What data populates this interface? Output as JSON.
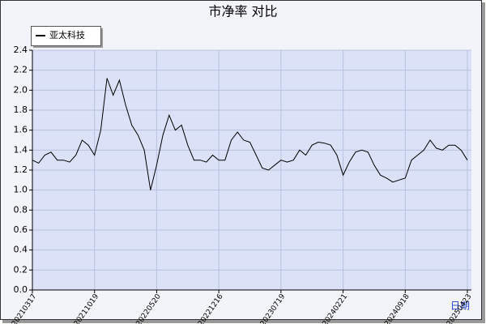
{
  "chart_data": {
    "type": "line",
    "title": "市净率 对比",
    "x_label": "日期",
    "categories": [
      "20210317",
      null,
      null,
      null,
      null,
      null,
      null,
      null,
      null,
      null,
      "20211019",
      null,
      null,
      null,
      null,
      null,
      null,
      null,
      null,
      null,
      "20220520",
      null,
      null,
      null,
      null,
      null,
      null,
      null,
      null,
      null,
      "20221216",
      null,
      null,
      null,
      null,
      null,
      null,
      null,
      null,
      null,
      "20230719",
      null,
      null,
      null,
      null,
      null,
      null,
      null,
      null,
      null,
      "20240221",
      null,
      null,
      null,
      null,
      null,
      null,
      null,
      null,
      null,
      "20240918",
      null,
      null,
      null,
      null,
      null,
      null,
      null,
      null,
      null,
      "20250423"
    ],
    "series": [
      {
        "name": "亚太科技",
        "color": "#000000",
        "values": [
          1.3,
          1.27,
          1.35,
          1.38,
          1.3,
          1.3,
          1.28,
          1.35,
          1.5,
          1.45,
          1.35,
          1.6,
          2.12,
          1.95,
          2.1,
          1.85,
          1.65,
          1.55,
          1.4,
          1.0,
          1.25,
          1.55,
          1.75,
          1.6,
          1.65,
          1.45,
          1.3,
          1.3,
          1.28,
          1.35,
          1.3,
          1.3,
          1.5,
          1.58,
          1.5,
          1.48,
          1.35,
          1.22,
          1.2,
          1.25,
          1.3,
          1.28,
          1.3,
          1.4,
          1.35,
          1.45,
          1.48,
          1.47,
          1.45,
          1.35,
          1.15,
          1.28,
          1.38,
          1.4,
          1.38,
          1.25,
          1.15,
          1.12,
          1.08,
          1.1,
          1.12,
          1.3,
          1.35,
          1.4,
          1.5,
          1.42,
          1.4,
          1.45,
          1.45,
          1.4,
          1.3
        ]
      }
    ],
    "ylim": [
      0,
      2.4
    ],
    "yticks": [
      {
        "value": 0,
        "label": "0.0"
      },
      0.2,
      0.4,
      0.6,
      0.8,
      {
        "value": 1,
        "label": "1.0"
      },
      1.2,
      1.4,
      1.6,
      1.8,
      {
        "value": 2,
        "label": "2.0"
      },
      2.2,
      2.4
    ],
    "grid": true,
    "legend": "top-left"
  }
}
